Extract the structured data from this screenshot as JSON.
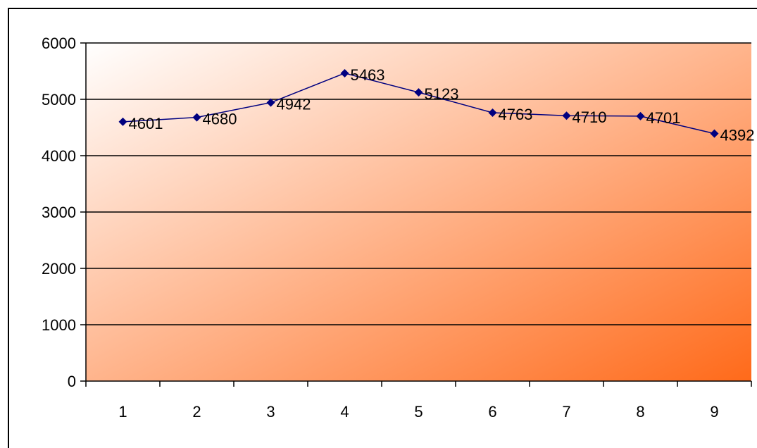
{
  "chart_data": {
    "type": "line",
    "categories": [
      "1",
      "2",
      "3",
      "4",
      "5",
      "6",
      "7",
      "8",
      "9"
    ],
    "series": [
      {
        "values": [
          4601,
          4680,
          4942,
          5463,
          5123,
          4763,
          4710,
          4701,
          4392
        ]
      }
    ],
    "title": "",
    "xlabel": "",
    "ylabel": "",
    "ylim": [
      0,
      6000
    ],
    "yticks": [
      "0",
      "1000",
      "2000",
      "3000",
      "4000",
      "5000",
      "6000"
    ],
    "grid": true,
    "legend": "none",
    "data_labels": true,
    "colors": {
      "line": "#000080",
      "marker": "#000080",
      "gradient_start": "#ffffff",
      "gradient_end": "#ff6a1a",
      "gridline": "#000000"
    }
  }
}
